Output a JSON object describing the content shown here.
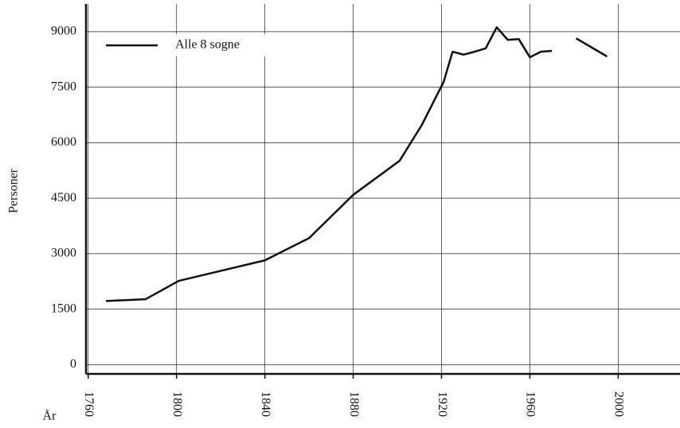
{
  "chart_data": {
    "type": "line",
    "y_label": "Personer",
    "x_label": "År",
    "x": [
      1768,
      1786,
      1801,
      1840,
      1860,
      1880,
      1901,
      1911,
      1921,
      1925,
      1930,
      1935,
      1940,
      1945,
      1950,
      1955,
      1960,
      1965,
      1970,
      1975,
      1981,
      1995
    ],
    "series": [
      {
        "name": "Alle 8 sogne",
        "color": "#111111",
        "values": [
          1720,
          1770,
          2265,
          2820,
          3420,
          4590,
          5510,
          6470,
          7650,
          8460,
          8380,
          8460,
          8550,
          9120,
          8780,
          8800,
          8310,
          8460,
          8480,
          null,
          8820,
          8330
        ]
      }
    ],
    "xlim": [
      1759,
      2028
    ],
    "xticks": [
      1760,
      1800,
      1840,
      1880,
      1920,
      1960,
      2000
    ],
    "ylim": [
      -250,
      9750
    ],
    "yticks": [
      0,
      1500,
      3000,
      4500,
      6000,
      7500,
      9000
    ],
    "grid": true,
    "legend": "upper left"
  }
}
